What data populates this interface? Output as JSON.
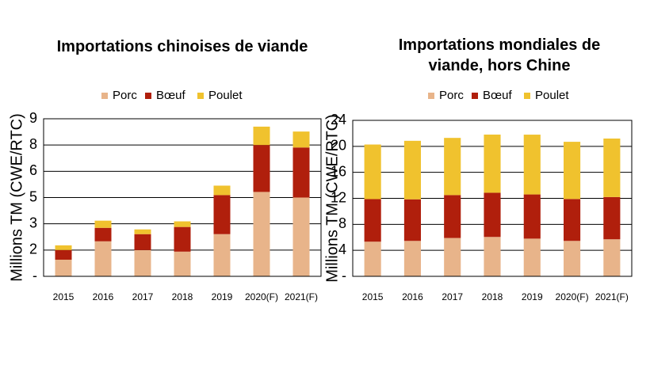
{
  "chart_data": [
    {
      "type": "bar",
      "stacked": true,
      "title": "Importations chinoises de viande",
      "y_label": "Millions TM (CWE/RTC)",
      "categories": [
        "2015",
        "2016",
        "2017",
        "2018",
        "2019",
        "2020(F)",
        "2021(F)"
      ],
      "series": [
        {
          "name": "Porc",
          "color": "#e8b48a",
          "values": [
            0.95,
            2.0,
            1.5,
            1.41,
            2.41,
            4.82,
            4.5
          ]
        },
        {
          "name": "Bœuf",
          "color": "#b01f0c",
          "values": [
            0.55,
            0.77,
            0.91,
            1.41,
            2.23,
            2.68,
            2.86
          ]
        },
        {
          "name": "Poulet",
          "color": "#f0c22e",
          "values": [
            0.27,
            0.41,
            0.27,
            0.32,
            0.54,
            1.05,
            0.91
          ]
        }
      ],
      "ylim": [
        0,
        9
      ],
      "yticks": [
        {
          "value": 0,
          "label": "-"
        },
        {
          "value": 1.5,
          "label": "2"
        },
        3,
        {
          "value": 4.5,
          "label": "5"
        },
        6,
        {
          "value": 7.5,
          "label": "8"
        },
        9
      ],
      "grid": true
    },
    {
      "type": "bar",
      "stacked": true,
      "title": "Importations mondiales de viande, hors Chine",
      "y_label": "Millions TM (CWE/RTC)",
      "categories": [
        "2015",
        "2016",
        "2017",
        "2018",
        "2019",
        "2020(F)",
        "2021(F)"
      ],
      "series": [
        {
          "name": "Porc",
          "color": "#e8b48a",
          "values": [
            5.33,
            5.45,
            5.9,
            6.06,
            5.8,
            5.45,
            5.7
          ]
        },
        {
          "name": "Bœuf",
          "color": "#b01f0c",
          "values": [
            6.55,
            6.4,
            6.6,
            6.8,
            6.8,
            6.45,
            6.5
          ]
        },
        {
          "name": "Poulet",
          "color": "#f0c22e",
          "values": [
            8.4,
            9.0,
            8.8,
            8.95,
            9.2,
            8.8,
            9.0
          ]
        }
      ],
      "ylim": [
        0,
        24
      ],
      "yticks": [
        {
          "value": 0,
          "label": "-"
        },
        4,
        8,
        12,
        16,
        20,
        24
      ],
      "grid": true
    }
  ]
}
